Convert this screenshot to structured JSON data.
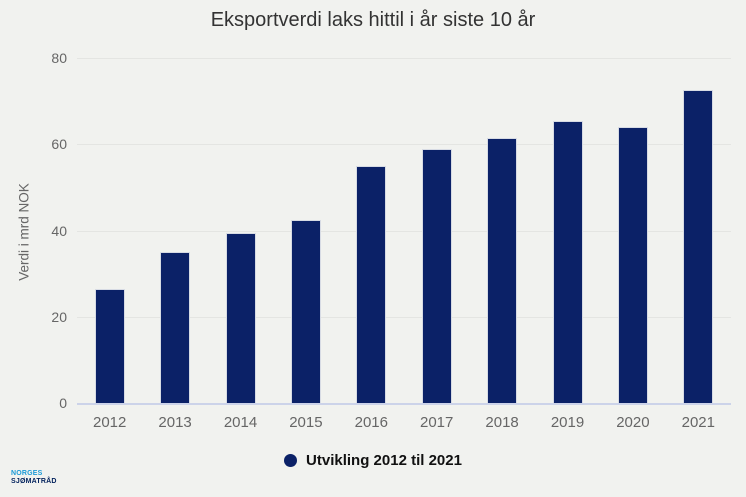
{
  "chart_data": {
    "type": "bar",
    "title": "Eksportverdi laks hittil i år siste 10 år",
    "categories": [
      "2012",
      "2013",
      "2014",
      "2015",
      "2016",
      "2017",
      "2018",
      "2019",
      "2020",
      "2021"
    ],
    "values": [
      26.5,
      35,
      39.5,
      42.5,
      55,
      59,
      61.5,
      65.5,
      64,
      72.5
    ],
    "xlabel": "",
    "ylabel": "Verdi i mrd NOK",
    "ylim": [
      0,
      80
    ],
    "yticks": [
      0,
      20,
      40,
      60,
      80
    ],
    "grid": true,
    "legend_label": "Utvikling 2012 til 2021",
    "legend_position": "bottom",
    "series_color": "#0b2167"
  },
  "logo": {
    "line1": "NORGES",
    "line2": "SJØMATRÅD",
    "line1_color": "#1b9ad7",
    "line2_color": "#00205b"
  },
  "colors": {
    "background": "#f1f2ef",
    "bar": "#0b2167",
    "gridline": "#e4e5e2",
    "axis_line": "#ccd3e9",
    "tick_label": "#666666",
    "title_text": "#333333",
    "legend_text": "#111111"
  }
}
